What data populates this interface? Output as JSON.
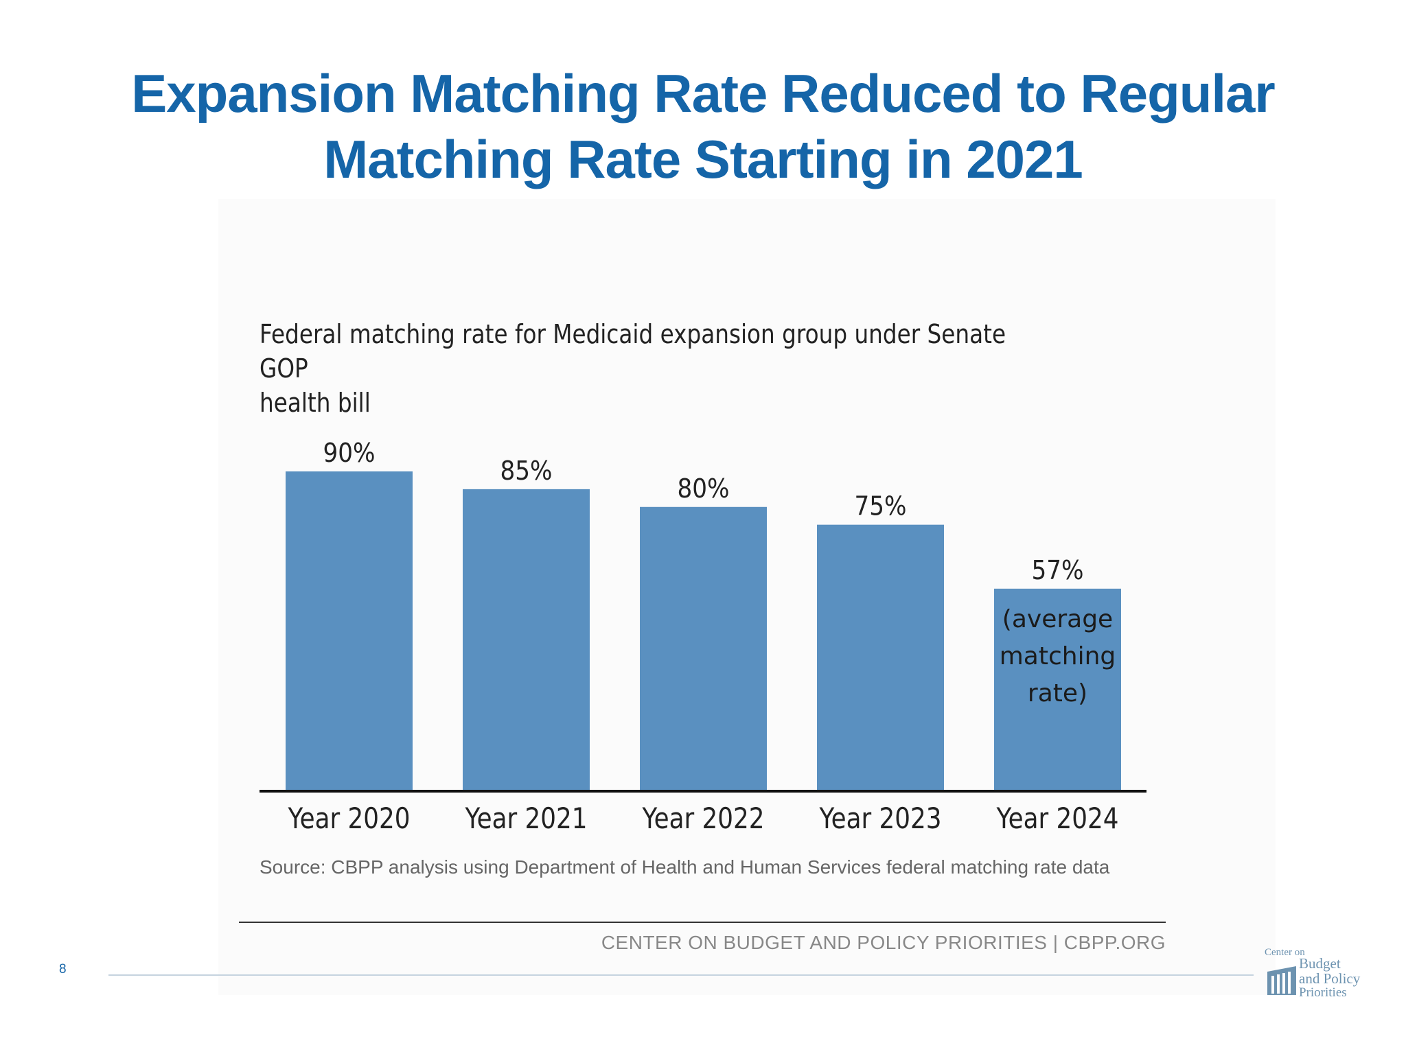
{
  "slide": {
    "title_line1": "Expansion Matching Rate Reduced to Regular",
    "title_line2": "Matching Rate Starting in 2021",
    "page_number": "8",
    "accent_color": "#1565a8"
  },
  "chart": {
    "title_line1": "Federal matching rate for Medicaid expansion group under Senate GOP",
    "title_line2": "health bill",
    "source": "Source: CBPP analysis using Department of Health and Human Services federal matching rate data",
    "footer": "CENTER ON BUDGET AND POLICY PRIORITIES | CBPP.ORG"
  },
  "logo": {
    "line1": "Center on",
    "line2": "Budget",
    "line3": "and Policy",
    "line4": "Priorities"
  },
  "chart_data": {
    "type": "bar",
    "categories": [
      "Year 2020",
      "Year 2021",
      "Year 2022",
      "Year 2023",
      "Year 2024"
    ],
    "values": [
      90,
      85,
      80,
      75,
      57
    ],
    "data_labels": [
      "90%",
      "85%",
      "80%",
      "75%",
      "57%"
    ],
    "annotations": [
      {
        "category": "Year 2024",
        "text": [
          "(average",
          "matching",
          "rate)"
        ]
      }
    ],
    "ylim": [
      0,
      90
    ],
    "grid": false,
    "bar_color": "#5a90c0"
  }
}
